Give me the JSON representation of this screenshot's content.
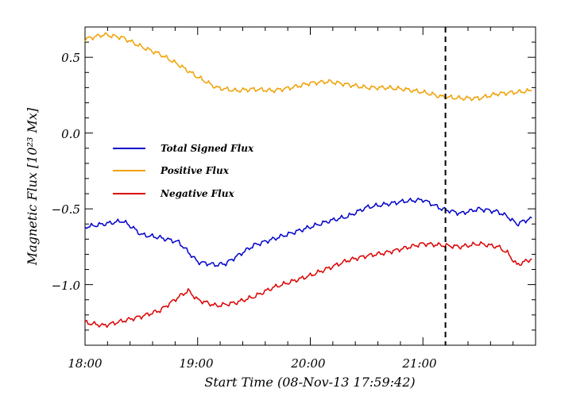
{
  "chart_data": {
    "type": "line",
    "xlabel": "Start Time (08-Nov-13 17:59:42)",
    "ylabel": "Magnetic Flux [10²³ Mx]",
    "xlim": [
      "18:00",
      "22:00"
    ],
    "ylim": [
      -1.4,
      0.7
    ],
    "x_tick_labels": [
      "18:00",
      "19:00",
      "20:00",
      "21:00"
    ],
    "y_ticks": [
      -1.0,
      -0.5,
      0.0,
      0.5
    ],
    "y_tick_labels": [
      "−1.0",
      "−0.5",
      "0.0",
      "0.5"
    ],
    "vline": {
      "x": "21:12",
      "style": "dashed"
    },
    "legend_position": "center-left",
    "series": [
      {
        "name": "Total Signed Flux",
        "color": "#0000cc",
        "x": [
          "18:00",
          "18:10",
          "18:20",
          "18:25",
          "18:30",
          "18:40",
          "18:50",
          "19:00",
          "19:10",
          "19:15",
          "19:20",
          "19:30",
          "19:40",
          "19:50",
          "20:00",
          "20:10",
          "20:20",
          "20:30",
          "20:40",
          "20:50",
          "21:00",
          "21:10",
          "21:20",
          "21:30",
          "21:40",
          "21:45",
          "21:50",
          "21:58"
        ],
        "values": [
          -0.62,
          -0.6,
          -0.58,
          -0.62,
          -0.67,
          -0.69,
          -0.72,
          -0.85,
          -0.87,
          -0.86,
          -0.82,
          -0.74,
          -0.7,
          -0.66,
          -0.62,
          -0.58,
          -0.55,
          -0.49,
          -0.47,
          -0.45,
          -0.44,
          -0.5,
          -0.53,
          -0.5,
          -0.52,
          -0.55,
          -0.6,
          -0.56
        ]
      },
      {
        "name": "Positive Flux",
        "color": "#f0a000",
        "x": [
          "18:00",
          "18:10",
          "18:20",
          "18:30",
          "18:40",
          "18:50",
          "19:00",
          "19:10",
          "19:20",
          "19:30",
          "19:40",
          "19:50",
          "20:00",
          "20:10",
          "20:20",
          "20:30",
          "20:40",
          "20:50",
          "21:00",
          "21:10",
          "21:20",
          "21:30",
          "21:40",
          "21:50",
          "21:58"
        ],
        "values": [
          0.62,
          0.65,
          0.63,
          0.57,
          0.52,
          0.45,
          0.37,
          0.3,
          0.28,
          0.29,
          0.28,
          0.3,
          0.33,
          0.34,
          0.32,
          0.3,
          0.3,
          0.29,
          0.27,
          0.24,
          0.23,
          0.23,
          0.26,
          0.27,
          0.28
        ]
      },
      {
        "name": "Negative Flux",
        "color": "#dd0000",
        "x": [
          "18:00",
          "18:10",
          "18:20",
          "18:30",
          "18:40",
          "18:50",
          "18:55",
          "19:00",
          "19:10",
          "19:20",
          "19:30",
          "19:40",
          "19:50",
          "20:00",
          "20:10",
          "20:20",
          "20:30",
          "20:40",
          "20:50",
          "21:00",
          "21:10",
          "21:20",
          "21:30",
          "21:40",
          "21:45",
          "21:50",
          "21:58"
        ],
        "values": [
          -1.25,
          -1.27,
          -1.24,
          -1.21,
          -1.17,
          -1.08,
          -1.04,
          -1.1,
          -1.14,
          -1.12,
          -1.08,
          -1.02,
          -0.98,
          -0.94,
          -0.89,
          -0.84,
          -0.81,
          -0.79,
          -0.76,
          -0.73,
          -0.74,
          -0.75,
          -0.73,
          -0.75,
          -0.79,
          -0.87,
          -0.83
        ]
      }
    ]
  }
}
